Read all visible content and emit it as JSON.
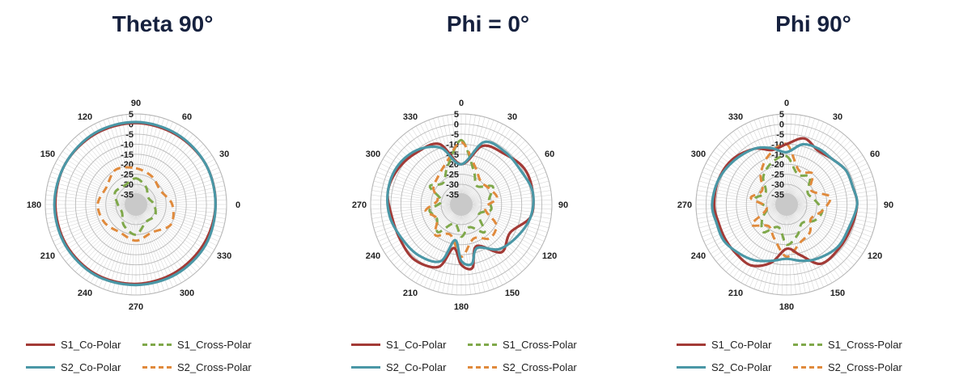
{
  "colors": {
    "s1_co": "#a33a36",
    "s2_co": "#4a97a6",
    "s1_cross": "#7fa84a",
    "s2_cross": "#e08a3c",
    "grid": "#b8b8b8",
    "title": "#16213e"
  },
  "legend": [
    {
      "key": "s1_co",
      "label": "S1_Co-Polar",
      "style": "solid"
    },
    {
      "key": "s1_cross",
      "label": "S1_Cross-Polar",
      "style": "dashed"
    },
    {
      "key": "s2_co",
      "label": "S2_Co-Polar",
      "style": "solid"
    },
    {
      "key": "s2_cross",
      "label": "S2_Cross-Polar",
      "style": "dashed"
    }
  ],
  "chart_data": [
    {
      "type": "polar-line",
      "title": "Theta 90°",
      "r_range": [
        -40,
        5
      ],
      "r_ticks": [
        "5",
        "0",
        "-5",
        "-10",
        "-15",
        "-20",
        "-25",
        "-30",
        "-35"
      ],
      "angle_ticks": [
        {
          "deg": 0,
          "label": "90"
        },
        {
          "deg": 30,
          "label": "60"
        },
        {
          "deg": 60,
          "label": "30"
        },
        {
          "deg": 90,
          "label": "0"
        },
        {
          "deg": 120,
          "label": "330"
        },
        {
          "deg": 150,
          "label": "300"
        },
        {
          "deg": 180,
          "label": "270"
        },
        {
          "deg": 210,
          "label": "240"
        },
        {
          "deg": 240,
          "label": "210"
        },
        {
          "deg": 270,
          "label": "180"
        },
        {
          "deg": 300,
          "label": "150"
        },
        {
          "deg": 330,
          "label": "120"
        }
      ],
      "series": [
        {
          "name": "S1_Co-Polar",
          "key": "s1_co",
          "style": "solid",
          "angles": [
            0,
            30,
            60,
            90,
            120,
            150,
            180,
            210,
            240,
            270,
            300,
            330
          ],
          "values": [
            0.5,
            0,
            0,
            -0.5,
            -1,
            -1,
            -0.5,
            0,
            0,
            0,
            0.5,
            0.5
          ]
        },
        {
          "name": "S1_Cross-Polar",
          "key": "s1_cross",
          "style": "dashed",
          "angles": [
            0,
            30,
            60,
            90,
            120,
            150,
            180,
            210,
            240,
            270,
            300,
            330
          ],
          "values": [
            -27,
            -30,
            -33,
            -31,
            -29,
            -30,
            -25,
            -28,
            -32,
            -31,
            -28,
            -29
          ]
        },
        {
          "name": "S2_Co-Polar",
          "key": "s2_co",
          "style": "solid",
          "angles": [
            0,
            30,
            60,
            90,
            120,
            150,
            180,
            210,
            240,
            270,
            300,
            330
          ],
          "values": [
            1,
            0.5,
            0,
            -0.5,
            0,
            0,
            0,
            0.5,
            0.5,
            0.5,
            0.5,
            1
          ]
        },
        {
          "name": "S2_Cross-Polar",
          "key": "s2_cross",
          "style": "dashed",
          "angles": [
            0,
            30,
            60,
            90,
            120,
            150,
            180,
            210,
            240,
            270,
            300,
            330
          ],
          "values": [
            -22,
            -24,
            -26,
            -22,
            -20,
            -24,
            -22,
            -24,
            -22,
            -21,
            -23,
            -20
          ]
        }
      ]
    },
    {
      "type": "polar-line",
      "title": "Phi = 0°",
      "r_range": [
        -40,
        5
      ],
      "r_ticks": [
        "5",
        "0",
        "-5",
        "-10",
        "-15",
        "-20",
        "-25",
        "-30",
        "-35"
      ],
      "angle_ticks": [
        {
          "deg": 0,
          "label": "0"
        },
        {
          "deg": 30,
          "label": "30"
        },
        {
          "deg": 60,
          "label": "60"
        },
        {
          "deg": 90,
          "label": "90"
        },
        {
          "deg": 120,
          "label": "120"
        },
        {
          "deg": 150,
          "label": "150"
        },
        {
          "deg": 180,
          "label": "180"
        },
        {
          "deg": 210,
          "label": "210"
        },
        {
          "deg": 240,
          "label": "240"
        },
        {
          "deg": 270,
          "label": "270"
        },
        {
          "deg": 300,
          "label": "300"
        },
        {
          "deg": 330,
          "label": "330"
        }
      ],
      "series": [
        {
          "name": "S1_Co-Polar",
          "key": "s1_co",
          "style": "solid",
          "angles": [
            0,
            20,
            40,
            60,
            80,
            100,
            120,
            140,
            160,
            170,
            180,
            190,
            200,
            220,
            240,
            260,
            280,
            300,
            320,
            340
          ],
          "values": [
            -20,
            -9,
            -7,
            -4,
            -4,
            -5,
            -12,
            -9,
            -18,
            -8,
            -10,
            -18,
            -7,
            -4,
            -5,
            -5,
            -3,
            -4,
            -6,
            -8
          ]
        },
        {
          "name": "S1_Cross-Polar",
          "key": "s1_cross",
          "style": "dashed",
          "angles": [
            0,
            20,
            40,
            60,
            80,
            100,
            120,
            140,
            160,
            180,
            200,
            220,
            240,
            260,
            280,
            300,
            320,
            340
          ],
          "values": [
            -8,
            -22,
            -28,
            -22,
            -26,
            -25,
            -30,
            -22,
            -28,
            -24,
            -30,
            -22,
            -26,
            -24,
            -30,
            -22,
            -26,
            -20
          ]
        },
        {
          "name": "S2_Co-Polar",
          "key": "s2_co",
          "style": "solid",
          "angles": [
            0,
            20,
            40,
            60,
            80,
            100,
            120,
            140,
            160,
            170,
            180,
            190,
            200,
            220,
            240,
            260,
            280,
            300,
            320,
            340
          ],
          "values": [
            -20,
            -7,
            -6,
            -6,
            -4,
            -5,
            -8,
            -11,
            -17,
            -10,
            -12,
            -22,
            -10,
            -7,
            -6,
            -4,
            -3,
            -3,
            -5,
            -10
          ]
        },
        {
          "name": "S2_Cross-Polar",
          "key": "s2_cross",
          "style": "dashed",
          "angles": [
            0,
            20,
            40,
            60,
            80,
            100,
            120,
            140,
            160,
            180,
            200,
            220,
            240,
            260,
            280,
            300,
            320,
            340
          ],
          "values": [
            -9,
            -20,
            -25,
            -24,
            -22,
            -28,
            -20,
            -18,
            -22,
            -14,
            -24,
            -20,
            -26,
            -22,
            -28,
            -24,
            -22,
            -18
          ]
        }
      ]
    },
    {
      "type": "polar-line",
      "title": "Phi 90°",
      "r_range": [
        -40,
        5
      ],
      "r_ticks": [
        "5",
        "0",
        "-5",
        "-10",
        "-15",
        "-20",
        "-25",
        "-30",
        "-35"
      ],
      "angle_ticks": [
        {
          "deg": 0,
          "label": "0"
        },
        {
          "deg": 30,
          "label": "30"
        },
        {
          "deg": 60,
          "label": "60"
        },
        {
          "deg": 90,
          "label": "90"
        },
        {
          "deg": 120,
          "label": "120"
        },
        {
          "deg": 150,
          "label": "150"
        },
        {
          "deg": 180,
          "label": "180"
        },
        {
          "deg": 210,
          "label": "210"
        },
        {
          "deg": 240,
          "label": "240"
        },
        {
          "deg": 270,
          "label": "270"
        },
        {
          "deg": 300,
          "label": "300"
        },
        {
          "deg": 330,
          "label": "330"
        }
      ],
      "series": [
        {
          "name": "S1_Co-Polar",
          "key": "s1_co",
          "style": "solid",
          "angles": [
            0,
            15,
            30,
            45,
            60,
            75,
            90,
            110,
            130,
            150,
            165,
            180,
            195,
            210,
            225,
            240,
            255,
            270,
            290,
            310,
            330,
            345
          ],
          "values": [
            -10,
            -6,
            -9,
            -8,
            -6,
            -6,
            -5,
            -6,
            -6,
            -6,
            -14,
            -18,
            -10,
            -5,
            -5,
            -5,
            -5,
            -4,
            -4,
            -5,
            -8,
            -12
          ]
        },
        {
          "name": "S1_Cross-Polar",
          "key": "s1_cross",
          "style": "dashed",
          "angles": [
            0,
            20,
            40,
            60,
            80,
            100,
            120,
            140,
            160,
            180,
            200,
            220,
            240,
            260,
            280,
            300,
            320,
            340
          ],
          "values": [
            -16,
            -24,
            -22,
            -28,
            -26,
            -22,
            -24,
            -28,
            -24,
            -20,
            -28,
            -22,
            -26,
            -30,
            -24,
            -28,
            -22,
            -18
          ]
        },
        {
          "name": "S2_Co-Polar",
          "key": "s2_co",
          "style": "solid",
          "angles": [
            0,
            15,
            30,
            45,
            60,
            75,
            90,
            110,
            130,
            150,
            165,
            180,
            195,
            210,
            225,
            240,
            255,
            270,
            290,
            310,
            330,
            345
          ],
          "values": [
            -14,
            -9,
            -8,
            -8,
            -6,
            -6,
            -5,
            -7,
            -7,
            -9,
            -11,
            -13,
            -11,
            -8,
            -6,
            -4,
            -4,
            -3,
            -4,
            -6,
            -8,
            -11
          ]
        },
        {
          "name": "S2_Cross-Polar",
          "key": "s2_cross",
          "style": "dashed",
          "angles": [
            0,
            20,
            40,
            60,
            80,
            100,
            120,
            140,
            160,
            180,
            200,
            220,
            240,
            260,
            280,
            300,
            320,
            340
          ],
          "values": [
            -10,
            -22,
            -20,
            -26,
            -18,
            -22,
            -26,
            -22,
            -20,
            -14,
            -22,
            -26,
            -20,
            -30,
            -22,
            -26,
            -20,
            -14
          ]
        }
      ]
    }
  ]
}
